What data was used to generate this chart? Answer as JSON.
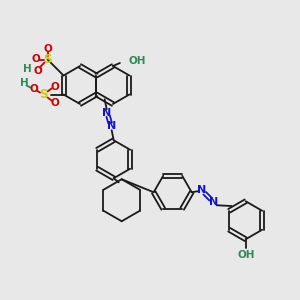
{
  "background_color": "#e8e8e8",
  "bond_color": "#1a1a1a",
  "azo_color": "#1414cc",
  "sulfur_color": "#cccc00",
  "oxygen_color": "#cc0000",
  "oh_color": "#2e8b57",
  "figsize": [
    3.0,
    3.0
  ],
  "dpi": 100,
  "xlim": [
    0,
    300
  ],
  "ylim": [
    0,
    300
  ]
}
